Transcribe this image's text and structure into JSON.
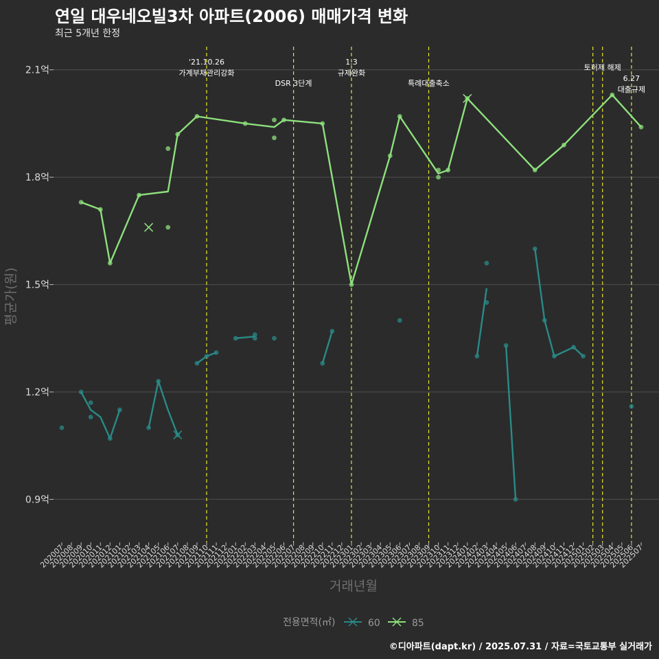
{
  "header": {
    "title": "연일 대우네오빌3차 아파트(2006) 매매가격 변화",
    "subtitle": "최근 5개년 한정"
  },
  "caption": "©디아파트(dapt.kr) / 2025.07.31 / 자료=국토교통부 실거래가",
  "colors": {
    "background": "#2b2b2b",
    "grid": "#4f4f4f",
    "series_60": "#2a8a87",
    "series_85": "#8ee07d",
    "event_line": "#e6e62e"
  },
  "chart_data": {
    "type": "line",
    "xlabel": "거래년월",
    "ylabel": "평균가(원)",
    "ylim": [
      0.78,
      2.18
    ],
    "yticks": [
      {
        "value": 0.9,
        "label": "0.9억"
      },
      {
        "value": 1.2,
        "label": "1.2억"
      },
      {
        "value": 1.5,
        "label": "1.5억"
      },
      {
        "value": 1.8,
        "label": "1.8억"
      },
      {
        "value": 2.1,
        "label": "2.1억"
      }
    ],
    "categories": [
      "202007",
      "202008",
      "202009",
      "202010",
      "202011",
      "202012",
      "202101",
      "202102",
      "202103",
      "202104",
      "202105",
      "202106",
      "202107",
      "202108",
      "202109",
      "202110",
      "202111",
      "202112",
      "202201",
      "202202",
      "202203",
      "202204",
      "202205",
      "202206",
      "202207",
      "202208",
      "202209",
      "202210",
      "202211",
      "202212",
      "202301",
      "202302",
      "202303",
      "202304",
      "202305",
      "202306",
      "202307",
      "202308",
      "202309",
      "202310",
      "202311",
      "202312",
      "202401",
      "202402",
      "202403",
      "202404",
      "202405",
      "202406",
      "202407",
      "202408",
      "202409",
      "202410",
      "202411",
      "202412",
      "202501",
      "202502",
      "202503",
      "202504",
      "202505",
      "202506",
      "202507"
    ],
    "legend": {
      "title": "전용면적(㎡)",
      "position": "bottom",
      "labels": [
        "60",
        "85"
      ]
    },
    "series": [
      {
        "name": "60",
        "line": [
          [
            "202009",
            1.2
          ],
          [
            "202010",
            1.15
          ],
          [
            "202011",
            1.13
          ],
          [
            "202012",
            1.07
          ],
          [
            "202101",
            1.15
          ],
          null,
          [
            "202104",
            1.1
          ],
          [
            "202105",
            1.23
          ],
          [
            "202106",
            1.15
          ],
          [
            "202107",
            1.08
          ],
          null,
          [
            "202109",
            1.28
          ],
          [
            "202110",
            1.3
          ],
          [
            "202111",
            1.31
          ],
          null,
          [
            "202201",
            1.35
          ],
          [
            "202203",
            1.355
          ],
          null,
          [
            "202210",
            1.28
          ],
          [
            "202211",
            1.37
          ],
          null,
          [
            "202402",
            1.3
          ],
          [
            "202403",
            1.49
          ],
          null,
          [
            "202405",
            1.33
          ],
          [
            "202406",
            0.9
          ],
          null,
          [
            "202408",
            1.6
          ],
          [
            "202409",
            1.4
          ],
          [
            "202410",
            1.3
          ],
          [
            "202412",
            1.325
          ],
          [
            "202501",
            1.3
          ]
        ],
        "points": [
          [
            "202007",
            1.1
          ],
          [
            "202009",
            1.2
          ],
          [
            "202010",
            1.17
          ],
          [
            "202010",
            1.13
          ],
          [
            "202012",
            1.07
          ],
          [
            "202101",
            1.15
          ],
          [
            "202104",
            1.1
          ],
          [
            "202105",
            1.23
          ],
          [
            "202107",
            1.08
          ],
          [
            "202109",
            1.28
          ],
          [
            "202110",
            1.3
          ],
          [
            "202111",
            1.31
          ],
          [
            "202201",
            1.35
          ],
          [
            "202203",
            1.36
          ],
          [
            "202203",
            1.35
          ],
          [
            "202205",
            1.35
          ],
          [
            "202210",
            1.28
          ],
          [
            "202211",
            1.37
          ],
          [
            "202306",
            1.4
          ],
          [
            "202402",
            1.3
          ],
          [
            "202403",
            1.45
          ],
          [
            "202403",
            1.56
          ],
          [
            "202405",
            1.33
          ],
          [
            "202406",
            0.9
          ],
          [
            "202408",
            1.6
          ],
          [
            "202409",
            1.4
          ],
          [
            "202410",
            1.3
          ],
          [
            "202412",
            1.325
          ],
          [
            "202501",
            1.3
          ],
          [
            "202506",
            1.16
          ]
        ],
        "cross": [
          [
            "202107",
            1.08
          ]
        ]
      },
      {
        "name": "85",
        "line": [
          [
            "202009",
            1.73
          ],
          [
            "202011",
            1.71
          ],
          [
            "202012",
            1.56
          ],
          [
            "202103",
            1.75
          ],
          [
            "202106",
            1.76
          ],
          [
            "202107",
            1.92
          ],
          [
            "202109",
            1.97
          ],
          [
            "202202",
            1.95
          ],
          [
            "202205",
            1.94
          ],
          [
            "202206",
            1.96
          ],
          [
            "202210",
            1.95
          ],
          [
            "202301",
            1.5
          ],
          [
            "202305",
            1.86
          ],
          [
            "202306",
            1.97
          ],
          [
            "202310",
            1.81
          ],
          [
            "202311",
            1.82
          ],
          [
            "202401",
            2.02
          ],
          [
            "202408",
            1.82
          ],
          [
            "202411",
            1.89
          ],
          [
            "202504",
            2.03
          ],
          [
            "202507",
            1.94
          ]
        ],
        "points": [
          [
            "202009",
            1.73
          ],
          [
            "202011",
            1.71
          ],
          [
            "202012",
            1.56
          ],
          [
            "202103",
            1.75
          ],
          [
            "202106",
            1.88
          ],
          [
            "202106",
            1.66
          ],
          [
            "202107",
            1.92
          ],
          [
            "202109",
            1.97
          ],
          [
            "202202",
            1.95
          ],
          [
            "202205",
            1.96
          ],
          [
            "202205",
            1.91
          ],
          [
            "202206",
            1.96
          ],
          [
            "202210",
            1.95
          ],
          [
            "202301",
            1.5
          ],
          [
            "202305",
            1.86
          ],
          [
            "202306",
            1.97
          ],
          [
            "202310",
            1.82
          ],
          [
            "202310",
            1.8
          ],
          [
            "202311",
            1.82
          ],
          [
            "202401",
            2.02
          ],
          [
            "202408",
            1.82
          ],
          [
            "202411",
            1.89
          ],
          [
            "202504",
            2.03
          ],
          [
            "202507",
            1.94
          ]
        ],
        "cross": [
          [
            "202104",
            1.66
          ],
          [
            "202401",
            2.02
          ]
        ]
      }
    ],
    "events": [
      {
        "x": "202110",
        "lines": [
          "'21.10.26",
          "가계부채관리강화"
        ],
        "row": 0
      },
      {
        "x": "202207",
        "lines": [
          "DSR 3단계"
        ],
        "row": 2
      },
      {
        "x": "202301",
        "lines": [
          "1.3",
          "규제완화"
        ],
        "row": 0
      },
      {
        "x": "202309",
        "lines": [
          "특례대출축소"
        ],
        "row": 2
      },
      {
        "x": "202502",
        "lines": [],
        "row": 0
      },
      {
        "x": "202503",
        "lines": [
          "토허제 해제"
        ],
        "row": 1
      },
      {
        "x": "202506",
        "lines": [
          "6.27",
          "대출규제"
        ],
        "row": 2
      }
    ]
  }
}
